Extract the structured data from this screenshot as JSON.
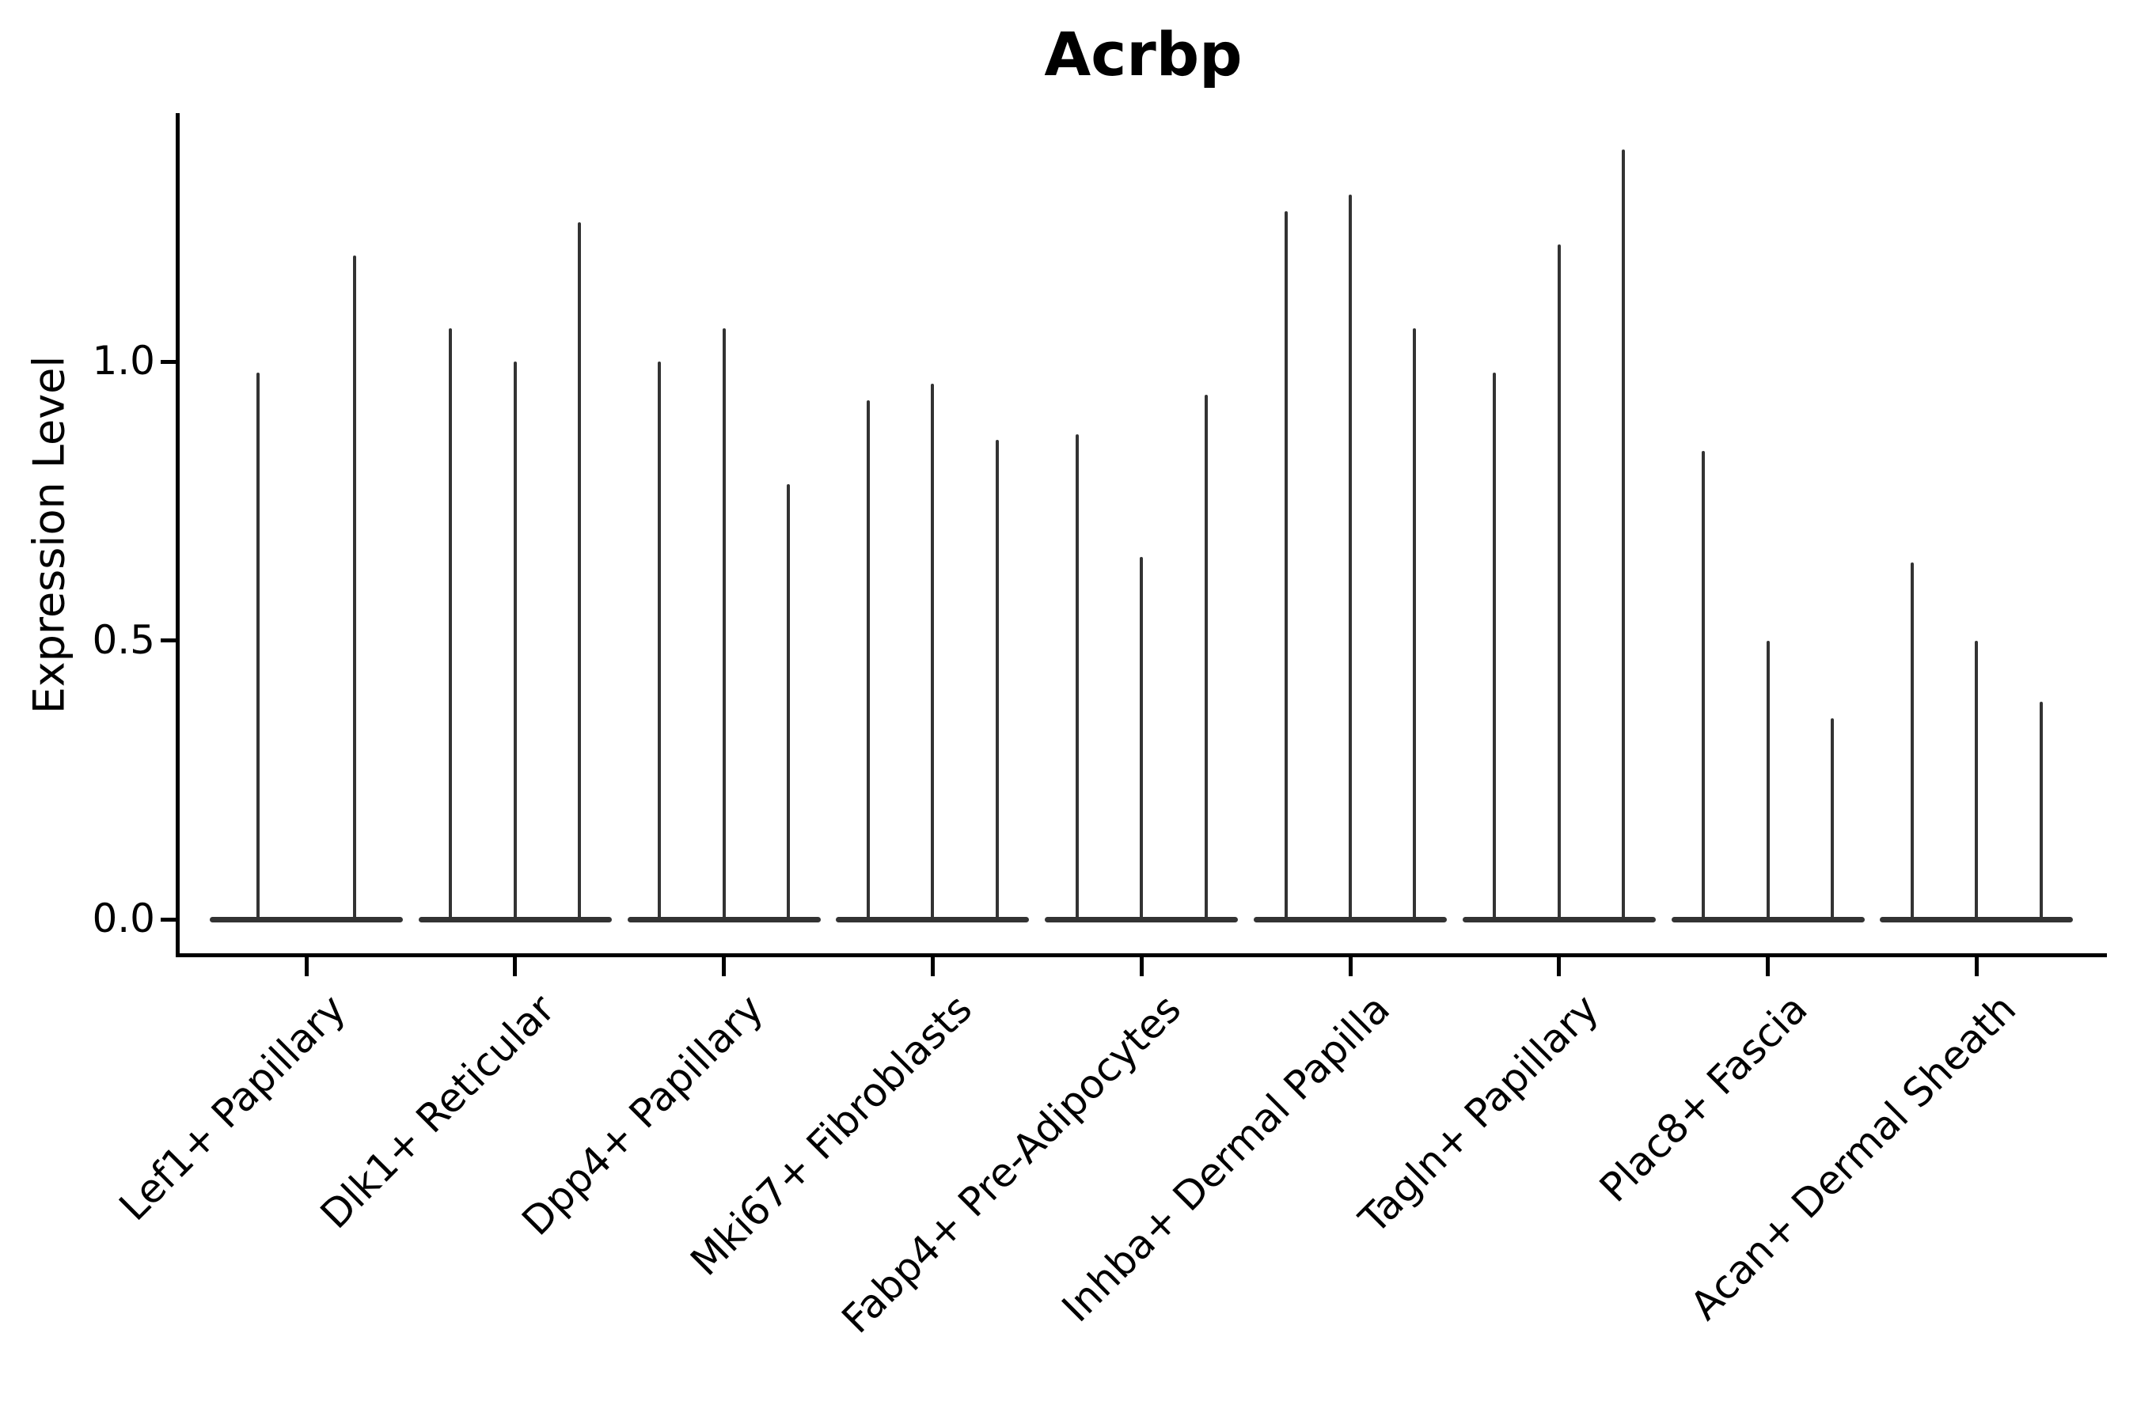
{
  "chart_data": {
    "type": "violin",
    "title": "Acrbp",
    "ylabel": "Expression Level",
    "xlabel": "",
    "grid": false,
    "legend": null,
    "ylim": [
      -0.07,
      1.45
    ],
    "yticks": [
      {
        "value": 0.0,
        "label": "0.0"
      },
      {
        "value": 0.5,
        "label": "0.5"
      },
      {
        "value": 1.0,
        "label": "1.0"
      }
    ],
    "categories": [
      "Lef1+ Papillary",
      "Dlk1+ Reticular",
      "Dpp4+ Papillary",
      "Mki67+ Fibroblasts",
      "Fabp4+ Pre-Adipocytes",
      "Inhba+ Dermal Papilla",
      "Tagln+ Papillary",
      "Plac8+ Fascia",
      "Acan+ Dermal Sheath"
    ],
    "groups": [
      {
        "label": "Lef1+ Papillary",
        "violin_baseline": 0.0,
        "violin_maxima": [
          0.98,
          1.19
        ]
      },
      {
        "label": "Dlk1+ Reticular",
        "violin_baseline": 0.0,
        "violin_maxima": [
          1.06,
          1.0,
          1.25
        ]
      },
      {
        "label": "Dpp4+ Papillary",
        "violin_baseline": 0.0,
        "violin_maxima": [
          1.0,
          1.06,
          0.78
        ]
      },
      {
        "label": "Mki67+ Fibroblasts",
        "violin_baseline": 0.0,
        "violin_maxima": [
          0.93,
          0.96,
          0.86
        ]
      },
      {
        "label": "Fabp4+ Pre-Adipocytes",
        "violin_baseline": 0.0,
        "violin_maxima": [
          0.87,
          0.65,
          0.94
        ]
      },
      {
        "label": "Inhba+ Dermal Papilla",
        "violin_baseline": 0.0,
        "violin_maxima": [
          1.27,
          1.3,
          1.06
        ]
      },
      {
        "label": "Tagln+ Papillary",
        "violin_baseline": 0.0,
        "violin_maxima": [
          0.98,
          1.21,
          1.38
        ]
      },
      {
        "label": "Plac8+ Fascia",
        "violin_baseline": 0.0,
        "violin_maxima": [
          0.84,
          0.5,
          0.36
        ]
      },
      {
        "label": "Acan+ Dermal Sheath",
        "violin_baseline": 0.0,
        "violin_maxima": [
          0.64,
          0.5,
          0.39
        ]
      }
    ],
    "colors": {
      "violin": "#333333",
      "spine": "#000000",
      "text": "#000000",
      "background": "#ffffff"
    }
  }
}
